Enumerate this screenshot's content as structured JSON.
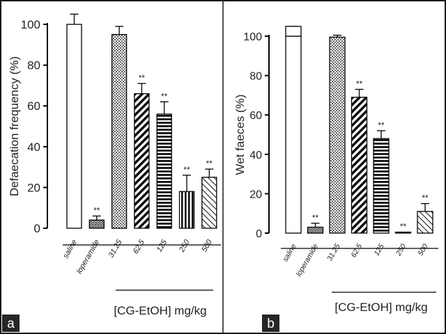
{
  "chart_data": [
    {
      "type": "bar",
      "panel_label": "a",
      "ylabel": "Defaecation frequency (%)",
      "xlabel": "[CG-EtOH] mg/kg",
      "ylim": [
        0,
        100
      ],
      "yticks": [
        0,
        20,
        40,
        60,
        80,
        100
      ],
      "grid": false,
      "categories": [
        "saline",
        "loperamide",
        "31.25",
        "62.5",
        "125",
        "250",
        "500"
      ],
      "values": [
        100,
        4,
        95,
        66,
        56,
        18,
        25
      ],
      "errors": [
        5,
        2,
        4,
        5,
        6,
        8,
        4
      ],
      "significance": [
        "",
        "**",
        "",
        "**",
        "**",
        "**",
        "**"
      ],
      "dose_group": [
        "31.25",
        "62.5",
        "125",
        "250",
        "500"
      ]
    },
    {
      "type": "bar",
      "panel_label": "b",
      "ylabel": "Wet faeces (%)",
      "xlabel": "[CG-EtOH] mg/kg",
      "ylim": [
        0,
        100
      ],
      "yticks": [
        0,
        20,
        40,
        60,
        80,
        100
      ],
      "grid": false,
      "categories": [
        "saline",
        "loperamide",
        "31.25",
        "62.5",
        "125",
        "250",
        "500"
      ],
      "values": [
        100,
        3,
        99.5,
        69,
        48,
        0.5,
        11
      ],
      "errors": [
        5,
        2,
        1,
        4,
        4,
        0,
        4
      ],
      "significance": [
        "",
        "**",
        "",
        "**",
        "**",
        "**",
        "**"
      ],
      "dose_group": [
        "31.25",
        "62.5",
        "125",
        "250",
        "500"
      ]
    }
  ],
  "styles": {
    "frame_color": "#1a1a1a",
    "bar_fills": [
      "white",
      "bricks",
      "dots",
      "diagonal",
      "horizontal",
      "vertical",
      "diagonal-light"
    ],
    "label_box_color": "#262626",
    "label_text_color": "#ffffff"
  }
}
